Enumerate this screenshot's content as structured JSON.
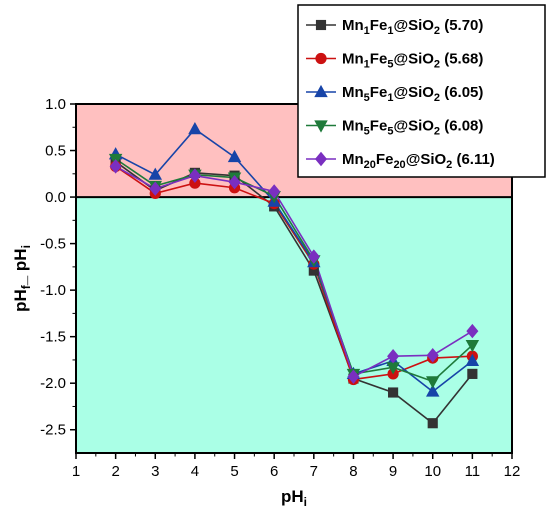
{
  "chart_data": {
    "type": "line",
    "xlabel": "pH",
    "xlabel_sub": "i",
    "ylabel_parts": [
      "pH",
      "f",
      "_ pH",
      "i"
    ],
    "xlim": [
      1,
      12
    ],
    "ylim": [
      -2.75,
      1.0
    ],
    "xticks": [
      1,
      2,
      3,
      4,
      5,
      6,
      7,
      8,
      9,
      10,
      11,
      12
    ],
    "yticks": [
      1.0,
      0.5,
      0.0,
      -0.5,
      -1.0,
      -1.5,
      -2.0,
      -2.5
    ],
    "ytick_labels": [
      "1.0",
      "0.5",
      "0.0",
      "-0.5",
      "-1.0",
      "-1.5",
      "-2.0",
      "-2.5"
    ],
    "regions": [
      {
        "from": 0,
        "to": 1.0,
        "color": "#ffc0c0"
      },
      {
        "from": -2.75,
        "to": 0,
        "color": "#aaffe6"
      }
    ],
    "zero_line": true,
    "legend_position": "top-right",
    "x": [
      2,
      3,
      4,
      5,
      6,
      7,
      8,
      9,
      10,
      11
    ],
    "series": [
      {
        "name": "Mn1Fe1@SiO2 (5.70)",
        "legend_parts": [
          [
            "Mn",
            ""
          ],
          [
            "1",
            "sub"
          ],
          [
            "Fe",
            ""
          ],
          [
            "1",
            "sub"
          ],
          [
            "@SiO",
            ""
          ],
          [
            "2",
            "sub"
          ],
          [
            " (5.70)",
            ""
          ]
        ],
        "color": "#333333",
        "marker": "square",
        "values": [
          0.38,
          0.07,
          0.26,
          0.23,
          -0.1,
          -0.79,
          -1.95,
          -2.1,
          -2.43,
          -1.9
        ]
      },
      {
        "name": "Mn1Fe5@SiO2 (5.68)",
        "legend_parts": [
          [
            "Mn",
            ""
          ],
          [
            "1",
            "sub"
          ],
          [
            "Fe",
            ""
          ],
          [
            "5",
            "sub"
          ],
          [
            "@SiO",
            ""
          ],
          [
            "2",
            "sub"
          ],
          [
            " (5.68)",
            ""
          ]
        ],
        "color": "#cc1111",
        "marker": "circle",
        "values": [
          0.33,
          0.04,
          0.15,
          0.1,
          -0.07,
          -0.72,
          -1.96,
          -1.9,
          -1.73,
          -1.71
        ]
      },
      {
        "name": "Mn5Fe1@SiO2 (6.05)",
        "legend_parts": [
          [
            "Mn",
            ""
          ],
          [
            "5",
            "sub"
          ],
          [
            "Fe",
            ""
          ],
          [
            "1",
            "sub"
          ],
          [
            "@SiO",
            ""
          ],
          [
            "2",
            "sub"
          ],
          [
            " (6.05)",
            ""
          ]
        ],
        "color": "#1744a8",
        "marker": "triangle-up",
        "values": [
          0.46,
          0.24,
          0.73,
          0.43,
          -0.05,
          -0.7,
          -1.9,
          -1.76,
          -2.09,
          -1.76
        ]
      },
      {
        "name": "Mn5Fe5@SiO2 (6.08)",
        "legend_parts": [
          [
            "Mn",
            ""
          ],
          [
            "5",
            "sub"
          ],
          [
            "Fe",
            ""
          ],
          [
            "5",
            "sub"
          ],
          [
            "@SiO",
            ""
          ],
          [
            "2",
            "sub"
          ],
          [
            " (6.08)",
            ""
          ]
        ],
        "color": "#1f7a3a",
        "marker": "triangle-down",
        "values": [
          0.41,
          0.12,
          0.24,
          0.21,
          0.01,
          -0.68,
          -1.9,
          -1.83,
          -1.98,
          -1.59
        ]
      },
      {
        "name": "Mn20Fe20@SiO2 (6.11)",
        "legend_parts": [
          [
            "Mn",
            ""
          ],
          [
            "20",
            "sub"
          ],
          [
            "Fe",
            ""
          ],
          [
            "20",
            "sub"
          ],
          [
            "@SiO",
            ""
          ],
          [
            "2",
            "sub"
          ],
          [
            " (6.11)",
            ""
          ]
        ],
        "color": "#7a2fc0",
        "marker": "diamond",
        "values": [
          0.33,
          0.09,
          0.23,
          0.16,
          0.06,
          -0.64,
          -1.93,
          -1.71,
          -1.7,
          -1.44
        ]
      }
    ]
  }
}
